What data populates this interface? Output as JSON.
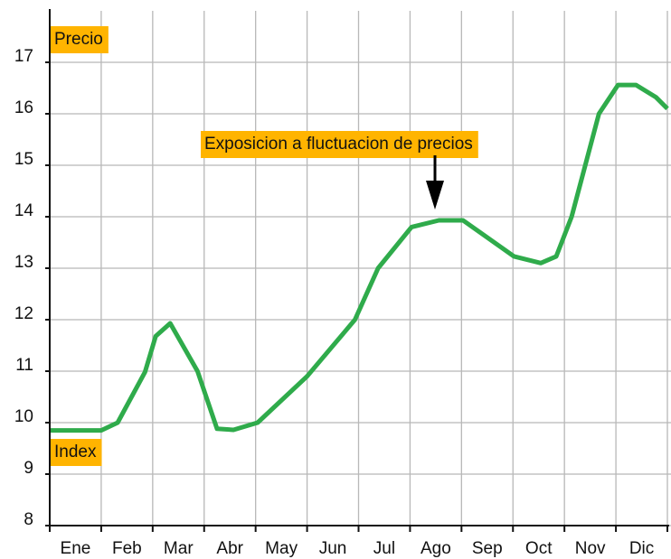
{
  "chart_data": {
    "type": "line",
    "annotations": [
      "Precio",
      "Index",
      "Exposicion a fluctuacion de precios"
    ],
    "categories": [
      "Ene",
      "Feb",
      "Mar",
      "Abr",
      "May",
      "Jun",
      "Jul",
      "Ago",
      "Sep",
      "Oct",
      "Nov",
      "Dic"
    ],
    "xlim": [
      0,
      12
    ],
    "xticks": [
      0,
      1,
      2,
      3,
      4,
      5,
      6,
      7,
      8,
      9,
      10,
      11,
      12
    ],
    "ylim": [
      8,
      18
    ],
    "yticks": [
      8,
      9,
      10,
      11,
      12,
      13,
      14,
      15,
      16,
      17
    ],
    "grid": true,
    "series": [
      {
        "color": "#2fab4b",
        "x": [
          0,
          1,
          1.32,
          1.85,
          2.06,
          2.34,
          2.87,
          3.25,
          3.57,
          4.04,
          5.0,
          5.93,
          6.38,
          7.03,
          7.56,
          8.03,
          9.02,
          9.54,
          9.84,
          10.14,
          10.67,
          11.04,
          11.39,
          11.78,
          12
        ],
        "values": [
          9.85,
          9.85,
          10.0,
          10.98,
          11.68,
          11.93,
          11.0,
          9.88,
          9.86,
          10.0,
          10.9,
          12.0,
          13.0,
          13.8,
          13.93,
          13.93,
          13.23,
          13.1,
          13.23,
          14.0,
          16.0,
          16.56,
          16.56,
          16.32,
          16.1
        ]
      }
    ]
  }
}
